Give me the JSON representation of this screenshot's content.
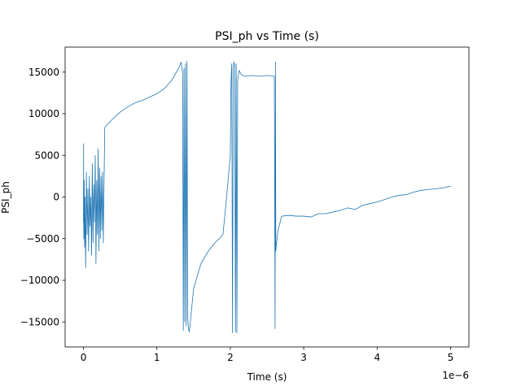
{
  "chart_data": {
    "type": "line",
    "title": "PSI_ph vs Time (s)",
    "xlabel": "Time (s)",
    "ylabel": "PSI_ph",
    "x_offset_label": "1e−6",
    "x_scale_factor": 1e-06,
    "xlim": [
      -2.5e-07,
      5.25e-06
    ],
    "ylim": [
      -18000,
      18000
    ],
    "x_ticks": [
      0,
      1e-06,
      2e-06,
      3e-06,
      4e-06,
      5e-06
    ],
    "x_tick_labels": [
      "0",
      "1",
      "2",
      "3",
      "4",
      "5"
    ],
    "y_ticks": [
      -15000,
      -10000,
      -5000,
      0,
      5000,
      10000,
      15000
    ],
    "y_tick_labels": [
      "−15000",
      "−10000",
      "−5000",
      "0",
      "5000",
      "10000",
      "15000"
    ],
    "grid": false,
    "line_color": "#1f77b4",
    "series": [
      {
        "x": [
          0,
          2e-09,
          4e-09,
          6e-09,
          8e-09,
          1e-08,
          1.5e-08,
          2e-08,
          3e-08,
          4e-08,
          5e-08,
          6e-08,
          7e-08,
          8e-08,
          9e-08,
          1e-07,
          1.1e-07,
          1.2e-07,
          1.3e-07,
          1.4e-07,
          1.5e-07,
          1.6e-07,
          1.7e-07,
          1.8e-07,
          1.9e-07,
          2e-07,
          2.1e-07,
          2.2e-07,
          2.3e-07,
          2.4e-07,
          2.5e-07,
          2.6e-07,
          2.7e-07,
          2.8e-07,
          2.9e-07,
          3e-07,
          4e-07,
          5e-07,
          6e-07,
          7e-07,
          8e-07,
          9e-07,
          1e-06,
          1.1e-06,
          1.2e-06,
          1.3e-06,
          1.33e-06,
          1.35e-06,
          1.36e-06,
          1.37e-06,
          1.38e-06,
          1.39e-06,
          1.4e-06,
          1.41e-06,
          1.42e-06,
          1.43e-06,
          1.44e-06,
          1.45e-06,
          1.5e-06,
          1.6e-06,
          1.7e-06,
          1.8e-06,
          1.85e-06,
          1.9e-06,
          1.95e-06,
          2e-06,
          2.01e-06,
          2.02e-06,
          2.03e-06,
          2.04e-06,
          2.05e-06,
          2.06e-06,
          2.07e-06,
          2.08e-06,
          2.09e-06,
          2.1e-06,
          2.12e-06,
          2.15e-06,
          2.2e-06,
          2.3e-06,
          2.4e-06,
          2.5e-06,
          2.6e-06,
          2.61e-06,
          2.615e-06,
          2.62e-06,
          2.63e-06,
          2.65e-06,
          2.7e-06,
          2.8e-06,
          2.9e-06,
          3e-06,
          3.1e-06,
          3.2e-06,
          3.3e-06,
          3.4e-06,
          3.5e-06,
          3.6e-06,
          3.7e-06,
          3.8e-06,
          3.9e-06,
          4e-06,
          4.1e-06,
          4.2e-06,
          4.3e-06,
          4.4e-06,
          4.5e-06,
          4.6e-06,
          4.7e-06,
          4.8e-06,
          4.9e-06,
          5e-06
        ],
        "y": [
          -3000,
          6400,
          -5000,
          1500,
          -4000,
          2000,
          -6000,
          0,
          -8500,
          3000,
          -4500,
          1000,
          -6500,
          2500,
          -3500,
          0,
          -7000,
          4000,
          -5500,
          1500,
          -3000,
          5000,
          -8000,
          2000,
          -4500,
          5800,
          -6500,
          3500,
          -5000,
          2500,
          -4000,
          3000,
          -5500,
          1500,
          8300,
          8500,
          9400,
          10200,
          10800,
          11300,
          11600,
          12000,
          12400,
          13000,
          14000,
          15500,
          16200,
          15000,
          -16000,
          15500,
          -15000,
          16000,
          -15500,
          16300,
          -14500,
          -15800,
          -16200,
          -15500,
          -11000,
          -8000,
          -6500,
          -5400,
          -5000,
          -4500,
          0,
          5000,
          14000,
          16000,
          -16300,
          15500,
          16200,
          15800,
          -16200,
          16000,
          -16300,
          14000,
          15200,
          14700,
          14500,
          14600,
          14500,
          14600,
          14500,
          -15800,
          16200,
          -6500,
          -5500,
          -4000,
          -2300,
          -2200,
          -2300,
          -2300,
          -2400,
          -2000,
          -2000,
          -1800,
          -1600,
          -1300,
          -1500,
          -1000,
          -800,
          -600,
          -300,
          0,
          200,
          300,
          600,
          800,
          900,
          1000,
          1100,
          1300
        ]
      }
    ]
  }
}
